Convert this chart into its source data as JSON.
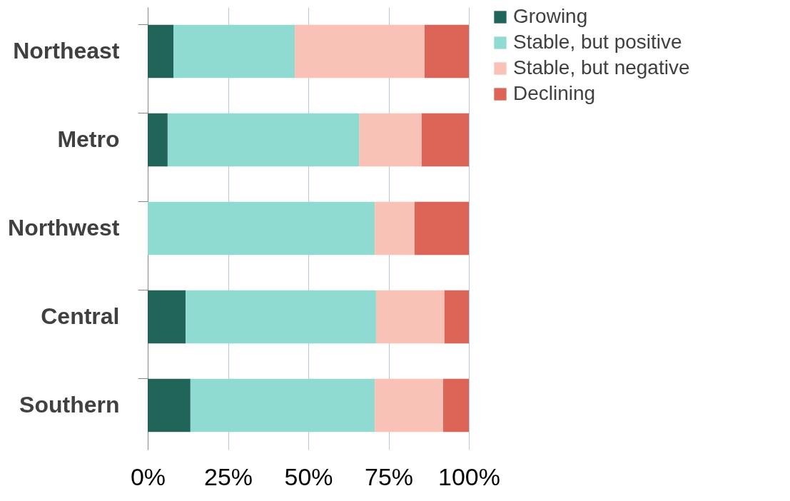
{
  "chart_data": {
    "type": "bar",
    "orientation": "horizontal",
    "stacked": true,
    "categories": [
      "Northeast",
      "Metro",
      "Northwest",
      "Central",
      "Southern"
    ],
    "series": [
      {
        "name": "Growing",
        "color": "#20645a",
        "values": [
          8,
          6.2,
          0,
          11.8,
          13.3
        ]
      },
      {
        "name": "Stable, but positive",
        "color": "#8fdbd1",
        "values": [
          37.8,
          59.6,
          70.7,
          59.3,
          57.4
        ]
      },
      {
        "name": "Stable, but negative",
        "color": "#f8c3b6",
        "values": [
          40.4,
          19.5,
          12.4,
          21.3,
          21.3
        ]
      },
      {
        "name": "Declining",
        "color": "#dc6557",
        "values": [
          13.8,
          14.7,
          16.9,
          7.6,
          8
        ]
      }
    ],
    "xlim": [
      0,
      100
    ],
    "xticks": [
      {
        "value": 0,
        "label": "0%"
      },
      {
        "value": 25,
        "label": "25%"
      },
      {
        "value": 50,
        "label": "50%"
      },
      {
        "value": 75,
        "label": "75%"
      },
      {
        "value": 100,
        "label": "100%"
      }
    ],
    "grid": "x",
    "legend": "right"
  }
}
